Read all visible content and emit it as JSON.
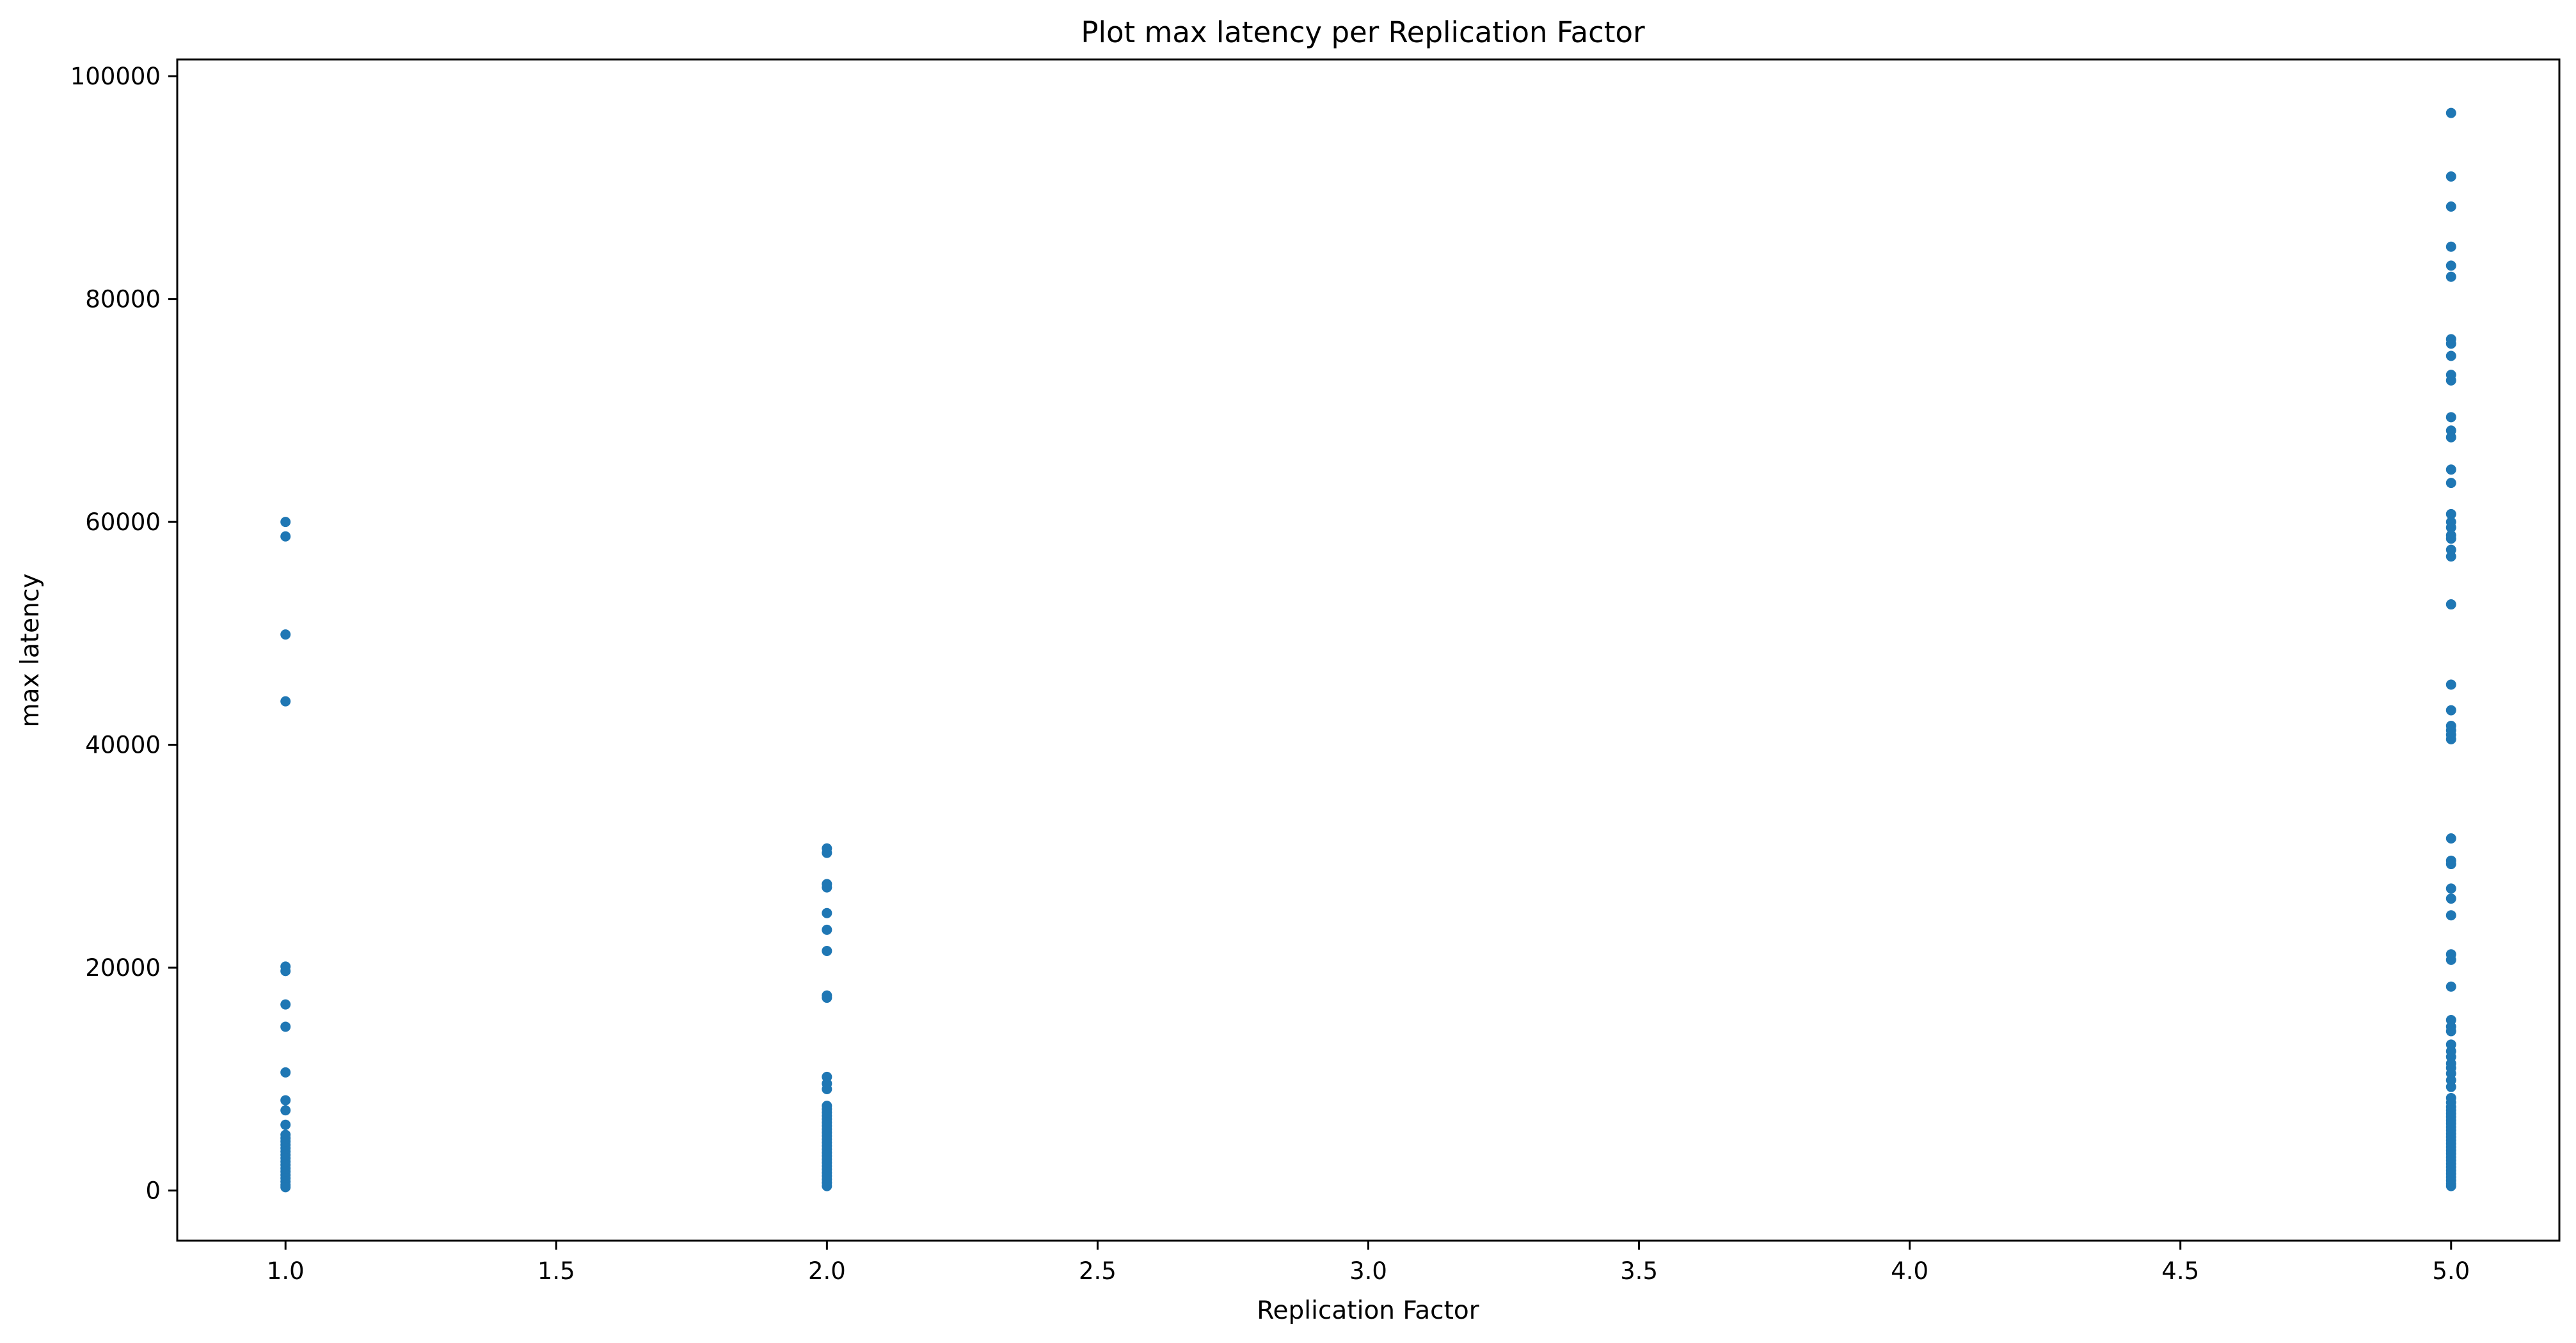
{
  "chart_data": {
    "type": "scatter",
    "title": "Plot max latency per Replication Factor",
    "xlabel": "Replication Factor",
    "ylabel": "max latency",
    "xlim": [
      0.8,
      5.2
    ],
    "ylim": [
      -4500,
      101500
    ],
    "x_ticks": [
      1.0,
      1.5,
      2.0,
      2.5,
      3.0,
      3.5,
      4.0,
      4.5,
      5.0
    ],
    "x_tick_labels": [
      "1.0",
      "1.5",
      "2.0",
      "2.5",
      "3.0",
      "3.5",
      "4.0",
      "4.5",
      "5.0"
    ],
    "y_ticks": [
      0,
      20000,
      40000,
      60000,
      80000,
      100000
    ],
    "y_tick_labels": [
      "0",
      "20000",
      "40000",
      "60000",
      "80000",
      "100000"
    ],
    "grid": false,
    "colors": {
      "points": "#1f77b4"
    },
    "series": [
      {
        "x": 1.0,
        "values": [
          60000,
          58700,
          49900,
          43900,
          20100,
          19700,
          16700,
          14700,
          10600,
          8100,
          7200,
          5900,
          5000,
          4700,
          4400,
          4100,
          3800,
          3500,
          3200,
          2900,
          2600,
          2300,
          2000,
          1700,
          1400,
          1100,
          800,
          500,
          300
        ]
      },
      {
        "x": 2.0,
        "values": [
          30700,
          30300,
          27500,
          27200,
          24900,
          23400,
          21500,
          17500,
          17300,
          10200,
          9600,
          9100,
          7600,
          7300,
          7000,
          6700,
          6400,
          6100,
          5800,
          5500,
          5200,
          4900,
          4600,
          4300,
          4000,
          3700,
          3400,
          3100,
          2800,
          2500,
          2200,
          1900,
          1600,
          1300,
          1000,
          700,
          400
        ]
      },
      {
        "x": 5.0,
        "values": [
          96700,
          91000,
          88300,
          84700,
          83000,
          82000,
          76400,
          76000,
          74900,
          73200,
          72700,
          69400,
          68200,
          67600,
          64700,
          63500,
          60700,
          60000,
          59500,
          58800,
          58500,
          57500,
          56900,
          52600,
          45400,
          43100,
          41700,
          41300,
          40900,
          40500,
          31600,
          29600,
          29300,
          27100,
          26200,
          24700,
          21200,
          20700,
          18300,
          15300,
          14700,
          14300,
          13100,
          12500,
          12000,
          11400,
          11000,
          10500,
          9900,
          9300,
          8300,
          7900,
          7500,
          7200,
          6900,
          6600,
          6300,
          6000,
          5700,
          5400,
          5100,
          4800,
          4500,
          4200,
          3900,
          3600,
          3300,
          3000,
          2700,
          2400,
          2100,
          1800,
          1500,
          1200,
          900,
          600,
          400
        ]
      }
    ]
  }
}
